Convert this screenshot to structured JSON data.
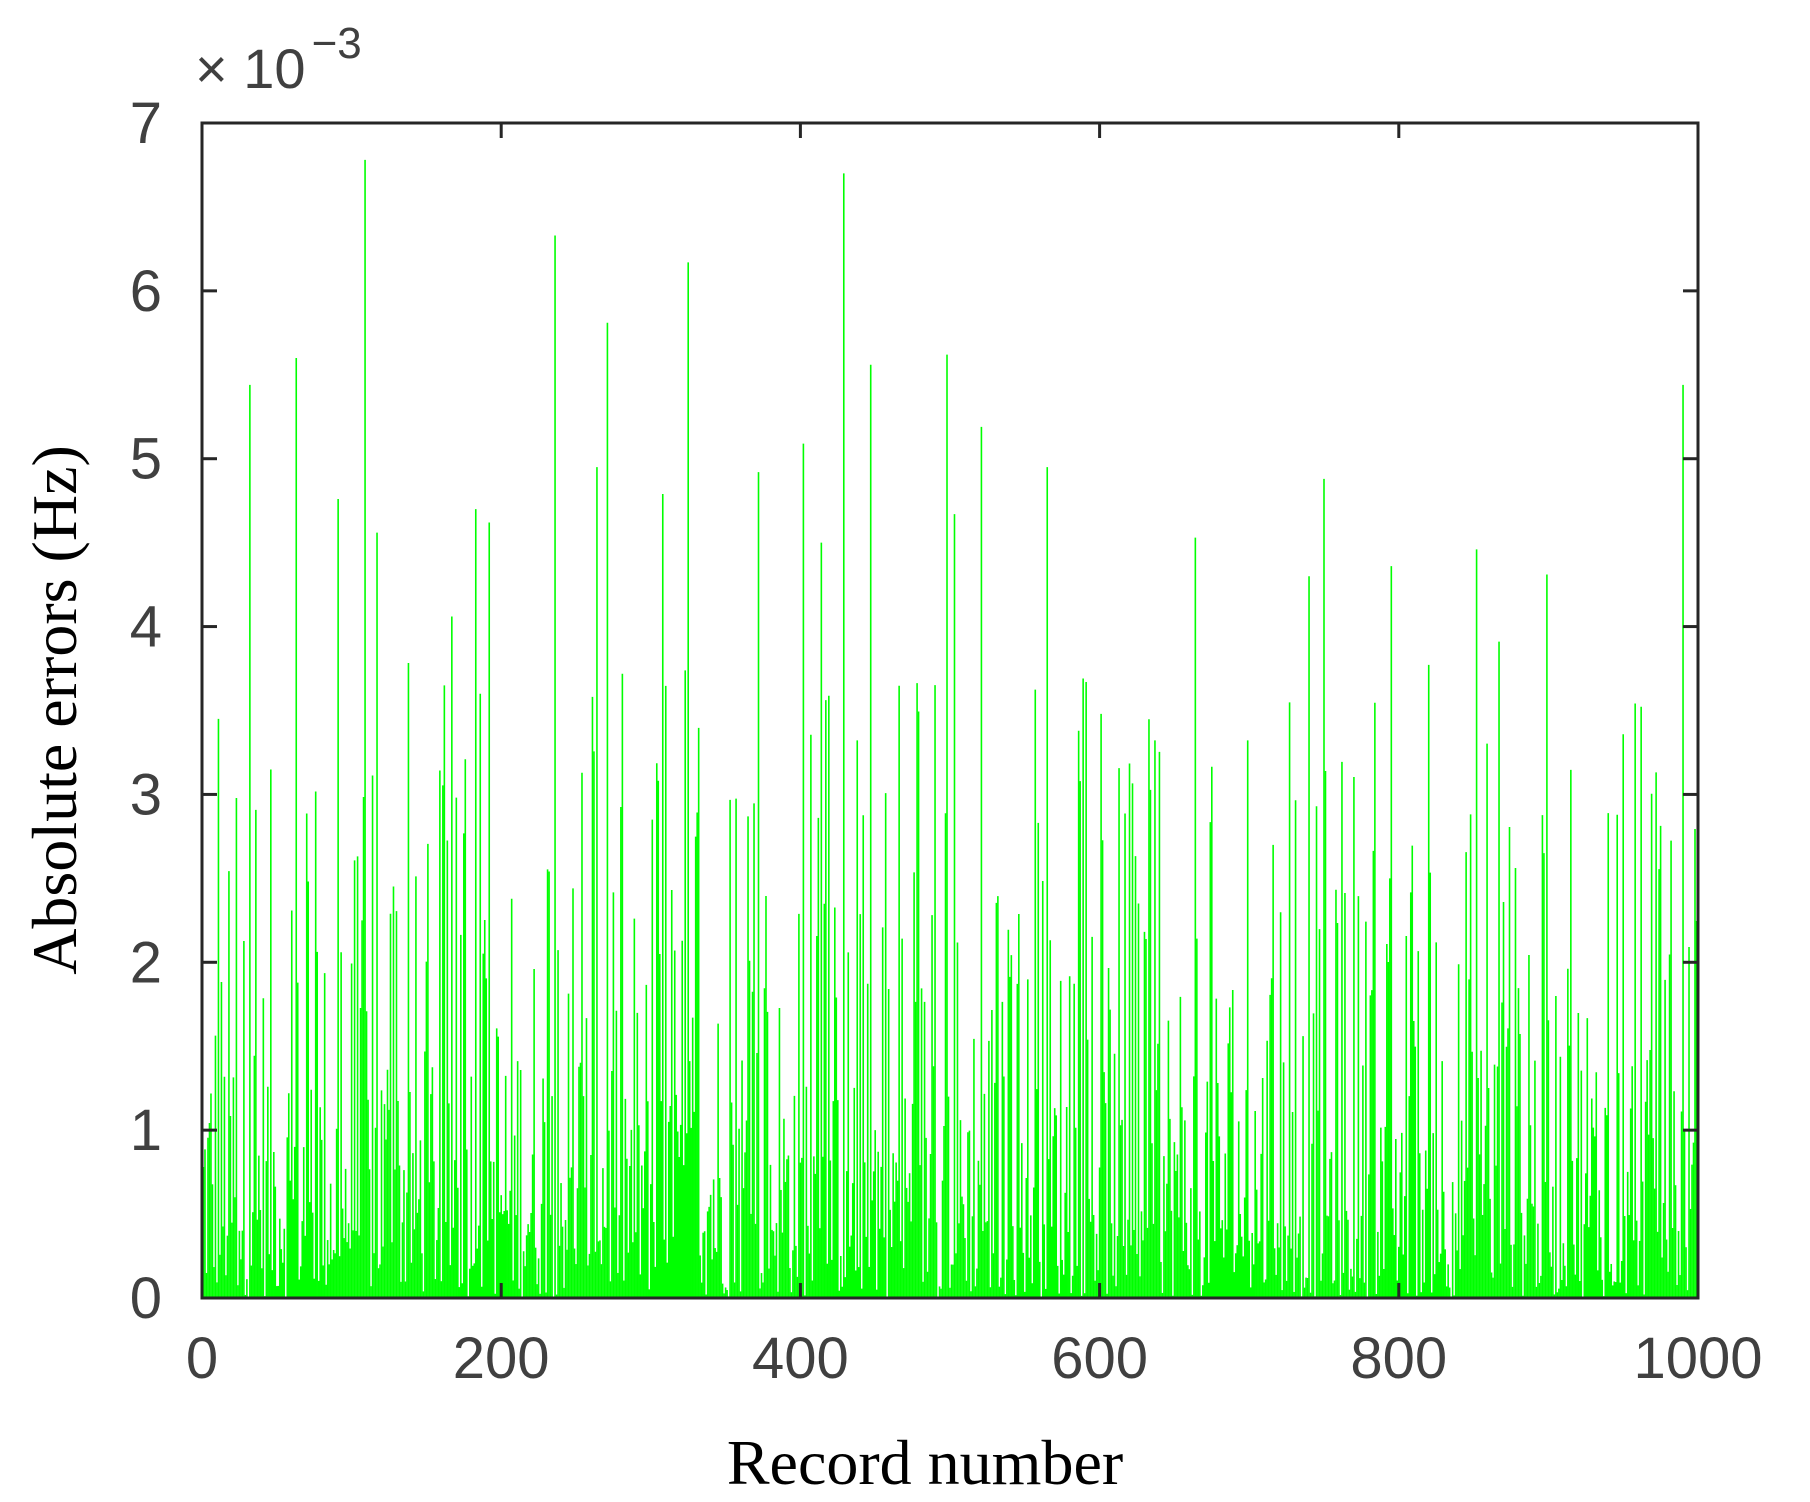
{
  "chart_data": {
    "type": "bar",
    "title": "",
    "xlabel": "Record number",
    "ylabel": "Absolute errors (Hz)",
    "xlim": [
      0,
      1000
    ],
    "ylim": [
      0,
      7
    ],
    "x_ticks": [
      "0",
      "200",
      "400",
      "600",
      "800",
      "1000"
    ],
    "y_ticks": [
      "0",
      "1",
      "2",
      "3",
      "4",
      "5",
      "6",
      "7"
    ],
    "y_exponent_prefix": "× 10",
    "y_exponent_power": "−3",
    "series_color": "#00ff00",
    "grid": false,
    "legend": "none",
    "notable_peaks": [
      {
        "x": 11,
        "y": 3.45
      },
      {
        "x": 32,
        "y": 5.44
      },
      {
        "x": 63,
        "y": 5.6
      },
      {
        "x": 91,
        "y": 4.76
      },
      {
        "x": 109,
        "y": 6.78
      },
      {
        "x": 117,
        "y": 4.56
      },
      {
        "x": 167,
        "y": 4.06
      },
      {
        "x": 183,
        "y": 4.7
      },
      {
        "x": 192,
        "y": 4.62
      },
      {
        "x": 236,
        "y": 6.33
      },
      {
        "x": 264,
        "y": 4.95
      },
      {
        "x": 271,
        "y": 5.81
      },
      {
        "x": 308,
        "y": 4.79
      },
      {
        "x": 325,
        "y": 6.17
      },
      {
        "x": 372,
        "y": 4.92
      },
      {
        "x": 402,
        "y": 5.09
      },
      {
        "x": 414,
        "y": 4.5
      },
      {
        "x": 429,
        "y": 6.7
      },
      {
        "x": 447,
        "y": 5.56
      },
      {
        "x": 498,
        "y": 5.62
      },
      {
        "x": 503,
        "y": 4.67
      },
      {
        "x": 521,
        "y": 5.19
      },
      {
        "x": 565,
        "y": 4.95
      },
      {
        "x": 664,
        "y": 4.53
      },
      {
        "x": 740,
        "y": 4.3
      },
      {
        "x": 750,
        "y": 4.88
      },
      {
        "x": 795,
        "y": 4.36
      },
      {
        "x": 852,
        "y": 4.46
      },
      {
        "x": 867,
        "y": 3.91
      },
      {
        "x": 899,
        "y": 4.31
      },
      {
        "x": 990,
        "y": 5.44
      }
    ]
  }
}
